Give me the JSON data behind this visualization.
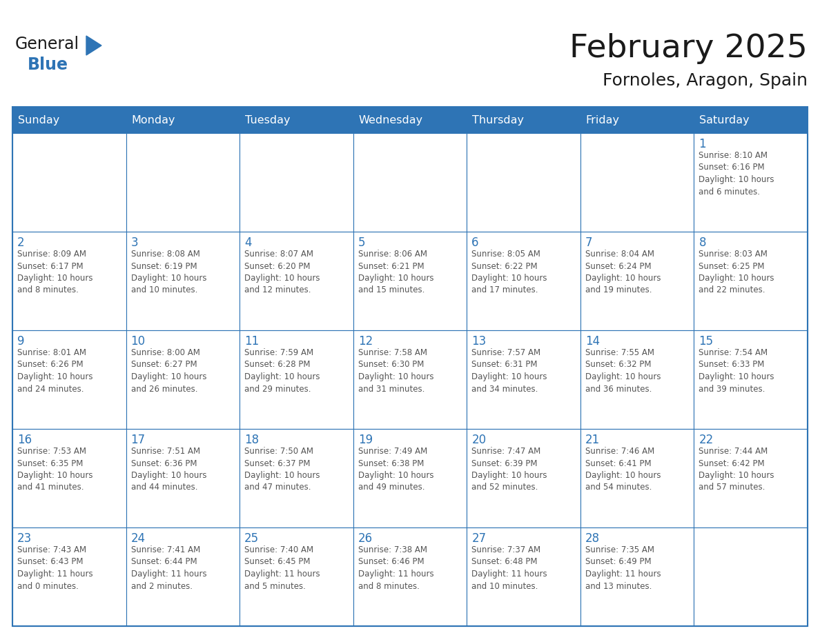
{
  "title": "February 2025",
  "subtitle": "Fornoles, Aragon, Spain",
  "header_bg": "#2E74B5",
  "header_text_color": "#FFFFFF",
  "cell_bg": "#FFFFFF",
  "cell_border_color": "#2E74B5",
  "day_number_color": "#2E74B5",
  "info_text_color": "#555555",
  "title_color": "#1a1a1a",
  "subtitle_color": "#1a1a1a",
  "days_of_week": [
    "Sunday",
    "Monday",
    "Tuesday",
    "Wednesday",
    "Thursday",
    "Friday",
    "Saturday"
  ],
  "weeks": [
    [
      {
        "day": null,
        "info": ""
      },
      {
        "day": null,
        "info": ""
      },
      {
        "day": null,
        "info": ""
      },
      {
        "day": null,
        "info": ""
      },
      {
        "day": null,
        "info": ""
      },
      {
        "day": null,
        "info": ""
      },
      {
        "day": 1,
        "info": "Sunrise: 8:10 AM\nSunset: 6:16 PM\nDaylight: 10 hours\nand 6 minutes."
      }
    ],
    [
      {
        "day": 2,
        "info": "Sunrise: 8:09 AM\nSunset: 6:17 PM\nDaylight: 10 hours\nand 8 minutes."
      },
      {
        "day": 3,
        "info": "Sunrise: 8:08 AM\nSunset: 6:19 PM\nDaylight: 10 hours\nand 10 minutes."
      },
      {
        "day": 4,
        "info": "Sunrise: 8:07 AM\nSunset: 6:20 PM\nDaylight: 10 hours\nand 12 minutes."
      },
      {
        "day": 5,
        "info": "Sunrise: 8:06 AM\nSunset: 6:21 PM\nDaylight: 10 hours\nand 15 minutes."
      },
      {
        "day": 6,
        "info": "Sunrise: 8:05 AM\nSunset: 6:22 PM\nDaylight: 10 hours\nand 17 minutes."
      },
      {
        "day": 7,
        "info": "Sunrise: 8:04 AM\nSunset: 6:24 PM\nDaylight: 10 hours\nand 19 minutes."
      },
      {
        "day": 8,
        "info": "Sunrise: 8:03 AM\nSunset: 6:25 PM\nDaylight: 10 hours\nand 22 minutes."
      }
    ],
    [
      {
        "day": 9,
        "info": "Sunrise: 8:01 AM\nSunset: 6:26 PM\nDaylight: 10 hours\nand 24 minutes."
      },
      {
        "day": 10,
        "info": "Sunrise: 8:00 AM\nSunset: 6:27 PM\nDaylight: 10 hours\nand 26 minutes."
      },
      {
        "day": 11,
        "info": "Sunrise: 7:59 AM\nSunset: 6:28 PM\nDaylight: 10 hours\nand 29 minutes."
      },
      {
        "day": 12,
        "info": "Sunrise: 7:58 AM\nSunset: 6:30 PM\nDaylight: 10 hours\nand 31 minutes."
      },
      {
        "day": 13,
        "info": "Sunrise: 7:57 AM\nSunset: 6:31 PM\nDaylight: 10 hours\nand 34 minutes."
      },
      {
        "day": 14,
        "info": "Sunrise: 7:55 AM\nSunset: 6:32 PM\nDaylight: 10 hours\nand 36 minutes."
      },
      {
        "day": 15,
        "info": "Sunrise: 7:54 AM\nSunset: 6:33 PM\nDaylight: 10 hours\nand 39 minutes."
      }
    ],
    [
      {
        "day": 16,
        "info": "Sunrise: 7:53 AM\nSunset: 6:35 PM\nDaylight: 10 hours\nand 41 minutes."
      },
      {
        "day": 17,
        "info": "Sunrise: 7:51 AM\nSunset: 6:36 PM\nDaylight: 10 hours\nand 44 minutes."
      },
      {
        "day": 18,
        "info": "Sunrise: 7:50 AM\nSunset: 6:37 PM\nDaylight: 10 hours\nand 47 minutes."
      },
      {
        "day": 19,
        "info": "Sunrise: 7:49 AM\nSunset: 6:38 PM\nDaylight: 10 hours\nand 49 minutes."
      },
      {
        "day": 20,
        "info": "Sunrise: 7:47 AM\nSunset: 6:39 PM\nDaylight: 10 hours\nand 52 minutes."
      },
      {
        "day": 21,
        "info": "Sunrise: 7:46 AM\nSunset: 6:41 PM\nDaylight: 10 hours\nand 54 minutes."
      },
      {
        "day": 22,
        "info": "Sunrise: 7:44 AM\nSunset: 6:42 PM\nDaylight: 10 hours\nand 57 minutes."
      }
    ],
    [
      {
        "day": 23,
        "info": "Sunrise: 7:43 AM\nSunset: 6:43 PM\nDaylight: 11 hours\nand 0 minutes."
      },
      {
        "day": 24,
        "info": "Sunrise: 7:41 AM\nSunset: 6:44 PM\nDaylight: 11 hours\nand 2 minutes."
      },
      {
        "day": 25,
        "info": "Sunrise: 7:40 AM\nSunset: 6:45 PM\nDaylight: 11 hours\nand 5 minutes."
      },
      {
        "day": 26,
        "info": "Sunrise: 7:38 AM\nSunset: 6:46 PM\nDaylight: 11 hours\nand 8 minutes."
      },
      {
        "day": 27,
        "info": "Sunrise: 7:37 AM\nSunset: 6:48 PM\nDaylight: 11 hours\nand 10 minutes."
      },
      {
        "day": 28,
        "info": "Sunrise: 7:35 AM\nSunset: 6:49 PM\nDaylight: 11 hours\nand 13 minutes."
      },
      {
        "day": null,
        "info": ""
      }
    ]
  ],
  "logo_general_color": "#1a1a1a",
  "logo_blue_color": "#2E74B5",
  "header_fontsize": 11.5,
  "day_number_fontsize": 12,
  "info_fontsize": 8.5,
  "title_fontsize": 34,
  "subtitle_fontsize": 18
}
